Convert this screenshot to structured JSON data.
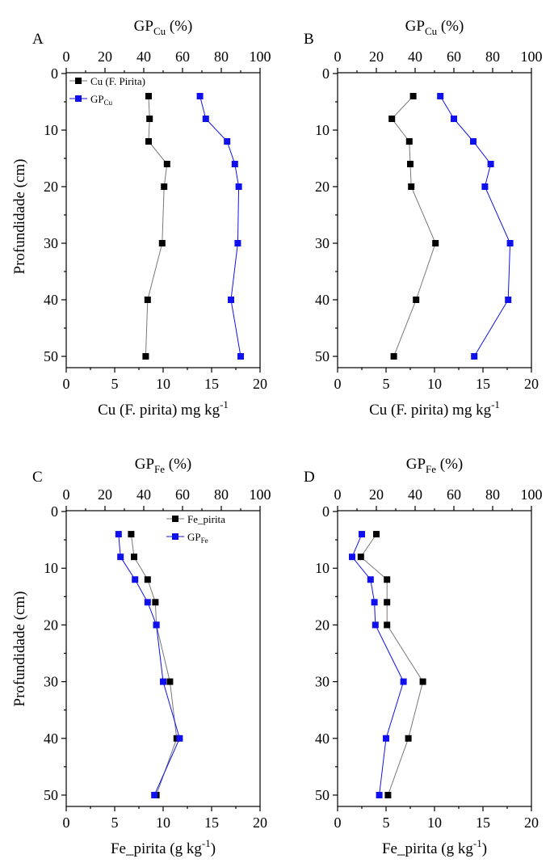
{
  "figure": {
    "y_axis_label": "Profundidade (cm)"
  },
  "chart_data": [
    {
      "type": "line",
      "panel": "A",
      "top_axis_label": {
        "main": "GP",
        "sub": "Cu",
        "rest": " (%)"
      },
      "bottom_axis_label": {
        "main": "Cu (F. pirita) mg kg",
        "sup": "-1"
      },
      "xlim_bottom": [
        0,
        20
      ],
      "xticks_bottom": [
        0,
        5,
        10,
        15,
        20
      ],
      "xlim_top": [
        0,
        100
      ],
      "xticks_top": [
        0,
        20,
        40,
        60,
        80,
        100
      ],
      "ylim": [
        0,
        52
      ],
      "yticks": [
        0,
        10,
        20,
        30,
        40,
        50
      ],
      "y_inverted": true,
      "legend": {
        "placement": "top-left",
        "entries": [
          {
            "main": "Cu (F. Pirita)",
            "sub": ""
          },
          {
            "main": "GP",
            "sub": "Cu"
          }
        ]
      },
      "series": [
        {
          "name": "Cu (F. Pirita)",
          "axis": "bottom",
          "color": "#000000",
          "line_color": "#777777",
          "x": [
            8.5,
            8.6,
            8.5,
            10.4,
            10.1,
            9.9,
            8.4,
            8.2
          ],
          "y": [
            4,
            8,
            12,
            16,
            20,
            30,
            40,
            50
          ]
        },
        {
          "name": "GPCu",
          "axis": "top",
          "color": "#1010ee",
          "line_color": "#1010ee",
          "x": [
            69,
            72,
            83,
            87,
            89,
            88.5,
            85,
            90
          ],
          "y": [
            4,
            8,
            12,
            16,
            20,
            30,
            40,
            50
          ]
        }
      ]
    },
    {
      "type": "line",
      "panel": "B",
      "top_axis_label": {
        "main": "GP",
        "sub": "Cu",
        "rest": " (%)"
      },
      "bottom_axis_label": {
        "main": "Cu (F. pirita) mg kg",
        "sup": "-1"
      },
      "xlim_bottom": [
        0,
        20
      ],
      "xticks_bottom": [
        0,
        5,
        10,
        15,
        20
      ],
      "xlim_top": [
        0,
        100
      ],
      "xticks_top": [
        0,
        20,
        40,
        60,
        80,
        100
      ],
      "ylim": [
        0,
        52
      ],
      "yticks": [
        0,
        10,
        20,
        30,
        40,
        50
      ],
      "y_inverted": true,
      "legend": null,
      "series": [
        {
          "name": "Cu (F. Pirita)",
          "axis": "bottom",
          "color": "#000000",
          "line_color": "#777777",
          "x": [
            7.8,
            5.6,
            7.4,
            7.5,
            7.6,
            10.1,
            8.1,
            5.8
          ],
          "y": [
            4,
            8,
            12,
            16,
            20,
            30,
            40,
            50
          ]
        },
        {
          "name": "GPCu",
          "axis": "top",
          "color": "#1010ee",
          "line_color": "#1010ee",
          "x": [
            53,
            60,
            70,
            79,
            76,
            89,
            88,
            70.5
          ],
          "y": [
            4,
            8,
            12,
            16,
            20,
            30,
            40,
            50
          ]
        }
      ]
    },
    {
      "type": "line",
      "panel": "C",
      "top_axis_label": {
        "main": "GP",
        "sub": "Fe",
        "rest": " (%)"
      },
      "bottom_axis_label": {
        "main": "Fe_pirita (g kg",
        "sup": "-1",
        "rest": ")"
      },
      "xlim_bottom": [
        0,
        20
      ],
      "xticks_bottom": [
        0,
        5,
        10,
        15,
        20
      ],
      "xlim_top": [
        0,
        100
      ],
      "xticks_top": [
        0,
        20,
        40,
        60,
        80,
        100
      ],
      "ylim": [
        0,
        52
      ],
      "yticks": [
        0,
        10,
        20,
        30,
        40,
        50
      ],
      "y_inverted": true,
      "legend": {
        "placement": "top-right",
        "entries": [
          {
            "main": "Fe_pirita",
            "sub": ""
          },
          {
            "main": "GP",
            "sub": "Fe"
          }
        ]
      },
      "series": [
        {
          "name": "Fe_pirita",
          "axis": "bottom",
          "color": "#000000",
          "line_color": "#777777",
          "x": [
            6.7,
            7.0,
            8.4,
            9.2,
            9.3,
            10.7,
            11.4,
            9.3
          ],
          "y": [
            4,
            8,
            12,
            16,
            20,
            30,
            40,
            50
          ]
        },
        {
          "name": "GPFe",
          "axis": "top",
          "color": "#1010ee",
          "line_color": "#1010ee",
          "x": [
            27,
            28,
            35.5,
            42,
            46.5,
            50,
            58.5,
            45.5
          ],
          "y": [
            4,
            8,
            12,
            16,
            20,
            30,
            40,
            50
          ]
        }
      ]
    },
    {
      "type": "line",
      "panel": "D",
      "top_axis_label": {
        "main": "GP",
        "sub": "Fe",
        "rest": " (%)"
      },
      "bottom_axis_label": {
        "main": "Fe_pirita (g kg",
        "sup": "-1",
        "rest": ")"
      },
      "xlim_bottom": [
        0,
        20
      ],
      "xticks_bottom": [
        0,
        5,
        10,
        15,
        20
      ],
      "xlim_top": [
        0,
        100
      ],
      "xticks_top": [
        0,
        20,
        40,
        60,
        80,
        100
      ],
      "ylim": [
        0,
        52
      ],
      "yticks": [
        0,
        10,
        20,
        30,
        40,
        50
      ],
      "y_inverted": true,
      "legend": null,
      "series": [
        {
          "name": "Fe_pirita",
          "axis": "bottom",
          "color": "#000000",
          "line_color": "#777777",
          "x": [
            4.0,
            2.4,
            5.1,
            5.1,
            5.1,
            8.8,
            7.3,
            5.2
          ],
          "y": [
            4,
            8,
            12,
            16,
            20,
            30,
            40,
            50
          ]
        },
        {
          "name": "GPFe",
          "axis": "top",
          "color": "#1010ee",
          "line_color": "#1010ee",
          "x": [
            12.5,
            7.5,
            17,
            19,
            19.5,
            34,
            25,
            21.5
          ],
          "y": [
            4,
            8,
            12,
            16,
            20,
            30,
            40,
            50
          ]
        }
      ]
    }
  ]
}
